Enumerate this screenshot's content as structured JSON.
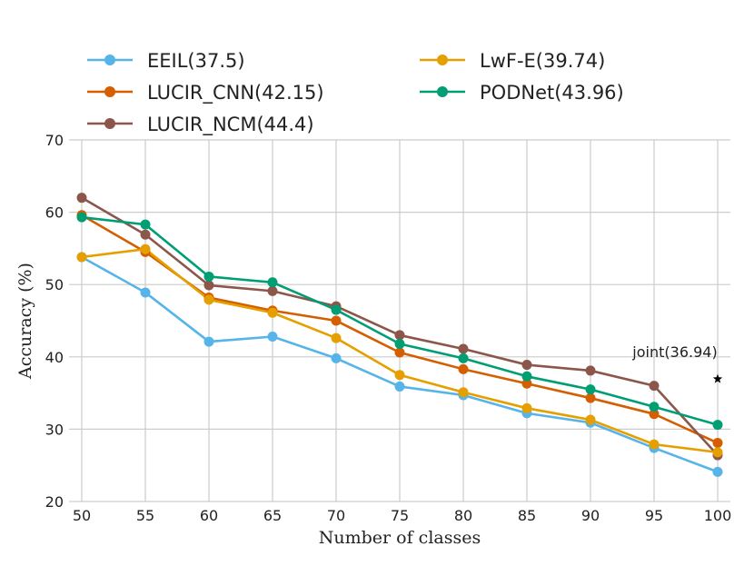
{
  "chart_data": {
    "type": "line",
    "title": "",
    "xlabel": "Number of classes",
    "ylabel": "Accuracy (%)",
    "x": [
      50,
      55,
      60,
      65,
      70,
      75,
      80,
      85,
      90,
      95,
      100
    ],
    "xlim": [
      49,
      101
    ],
    "ylim": [
      20,
      70
    ],
    "xticks": [
      50,
      55,
      60,
      65,
      70,
      75,
      80,
      85,
      90,
      95,
      100
    ],
    "yticks": [
      20,
      30,
      40,
      50,
      60,
      70
    ],
    "grid": true,
    "legend_position": "top",
    "series": [
      {
        "name": "EEIL(37.5)",
        "color": "#56B4E9",
        "values": [
          53.8,
          48.9,
          42.1,
          42.8,
          39.8,
          35.9,
          34.7,
          32.2,
          30.9,
          27.4,
          24.1
        ]
      },
      {
        "name": "LUCIR_CNN(42.15)",
        "color": "#D55E00",
        "values": [
          59.6,
          54.5,
          48.2,
          46.4,
          45.0,
          40.6,
          38.3,
          36.3,
          34.3,
          32.1,
          28.1
        ]
      },
      {
        "name": "LUCIR_NCM(44.4)",
        "color": "#8C564B",
        "values": [
          62.0,
          56.9,
          49.9,
          49.1,
          47.0,
          43.0,
          41.1,
          38.9,
          38.1,
          36.0,
          26.4
        ]
      },
      {
        "name": "LwF-E(39.74)",
        "color": "#E69F00",
        "values": [
          53.8,
          54.9,
          47.9,
          46.1,
          42.6,
          37.5,
          35.1,
          32.9,
          31.3,
          27.9,
          26.8
        ]
      },
      {
        "name": "PODNet(43.96)",
        "color": "#009E73",
        "values": [
          59.3,
          58.3,
          51.1,
          50.3,
          46.5,
          41.8,
          39.8,
          37.3,
          35.5,
          33.1,
          30.6
        ]
      }
    ],
    "annotations": [
      {
        "text": "joint(36.94)",
        "x": 100,
        "y": 36.94,
        "marker": "star",
        "color": "#000000"
      }
    ]
  }
}
